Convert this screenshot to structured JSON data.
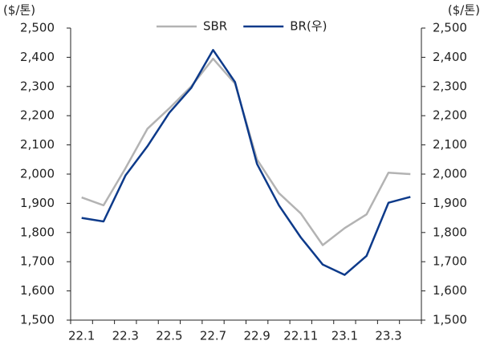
{
  "chart_data": {
    "type": "line",
    "y_label": "($/톤)",
    "y2_label": "($/톤)",
    "categories": [
      "22.1",
      null,
      "22.3",
      null,
      "22.5",
      null,
      "22.7",
      null,
      "22.9",
      null,
      "22.11",
      null,
      "23.1",
      null,
      "23.3",
      null
    ],
    "series": [
      {
        "name": "SBR",
        "color": "#b3b3b3",
        "values": [
          1920,
          1893,
          2020,
          2155,
          2225,
          2300,
          2395,
          2310,
          2050,
          1935,
          1865,
          1757,
          1815,
          1862,
          2005,
          2000
        ]
      },
      {
        "name": "BR(우)",
        "color": "#0d3a8a",
        "axis": "y2",
        "values": [
          1850,
          1838,
          1995,
          2095,
          2210,
          2295,
          2425,
          2315,
          2035,
          1893,
          1783,
          1690,
          1655,
          1720,
          1902,
          1922
        ]
      }
    ],
    "ylim": [
      1500,
      2500
    ],
    "yticks": [
      {
        "value": 1500,
        "label": "1,500"
      },
      {
        "value": 1600,
        "label": "1,600"
      },
      {
        "value": 1700,
        "label": "1,700"
      },
      {
        "value": 1800,
        "label": "1,800"
      },
      {
        "value": 1900,
        "label": "1,900"
      },
      {
        "value": 2000,
        "label": "2,000"
      },
      {
        "value": 2100,
        "label": "2,100"
      },
      {
        "value": 2200,
        "label": "2,200"
      },
      {
        "value": 2300,
        "label": "2,300"
      },
      {
        "value": 2400,
        "label": "2,400"
      },
      {
        "value": 2500,
        "label": "2,500"
      }
    ],
    "y2lim": [
      1500,
      2500
    ],
    "y2ticks": [
      {
        "value": 1500,
        "label": "1,500"
      },
      {
        "value": 1600,
        "label": "1,600"
      },
      {
        "value": 1700,
        "label": "1,700"
      },
      {
        "value": 1800,
        "label": "1,800"
      },
      {
        "value": 1900,
        "label": "1,900"
      },
      {
        "value": 2000,
        "label": "2,000"
      },
      {
        "value": 2100,
        "label": "2,100"
      },
      {
        "value": 2200,
        "label": "2,200"
      },
      {
        "value": 2300,
        "label": "2,300"
      },
      {
        "value": 2400,
        "label": "2,400"
      },
      {
        "value": 2500,
        "label": "2,500"
      }
    ],
    "legend": "top"
  }
}
